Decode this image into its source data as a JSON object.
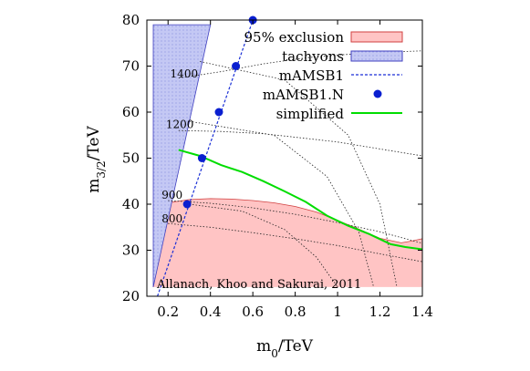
{
  "chart_data": {
    "type": "line",
    "title": "",
    "xlabel": "m0/TeV",
    "ylabel": "m3/2/TeV",
    "xlim": [
      0.1,
      1.4
    ],
    "ylim": [
      20,
      80
    ],
    "xticks": [
      0.2,
      0.4,
      0.6,
      0.8,
      1.0,
      1.2,
      1.4
    ],
    "xtick_labels": [
      "0.2",
      "0.4",
      "0.6",
      "0.8",
      "1",
      "1.2",
      "1.4"
    ],
    "yticks": [
      20,
      30,
      40,
      50,
      60,
      70,
      80
    ],
    "ytick_labels": [
      "20",
      "30",
      "40",
      "50",
      "60",
      "70",
      "80"
    ],
    "grid": false,
    "legend_position": "top-right",
    "annotation": "Allanach, Khoo and Sakurai, 2011",
    "colors": {
      "exclusion_fill": "#ffc4c4",
      "exclusion_edge": "#d04040",
      "tachyon_fill": "#c4c8f4",
      "tachyon_edge": "#4040c0",
      "mamsb1_line": "#1a2fd6",
      "mamsb1n_point": "#0a1fd0",
      "simplified_line": "#00dd00",
      "contour": "#222222"
    },
    "series": [
      {
        "name": "95% exclusion",
        "kind": "filled-region",
        "x": [
          0.13,
          0.2,
          0.3,
          0.4,
          0.5,
          0.6,
          0.7,
          0.8,
          0.9,
          1.0,
          1.1,
          1.2,
          1.3,
          1.35,
          1.4,
          1.4,
          0.13
        ],
        "y": [
          22,
          40.3,
          41,
          41.2,
          41.1,
          40.8,
          40.3,
          39.5,
          38.3,
          36.5,
          34.6,
          32.6,
          31.6,
          32,
          32.5,
          22,
          22
        ]
      },
      {
        "name": "tachyons",
        "kind": "filled-region",
        "x": [
          0.13,
          0.13,
          0.4,
          0.13
        ],
        "y": [
          22,
          79,
          79,
          22
        ]
      },
      {
        "name": "mAMSB1",
        "kind": "dashed-line",
        "x": [
          0.15,
          0.6
        ],
        "y": [
          20,
          80
        ]
      },
      {
        "name": "mAMSB1.N",
        "kind": "points",
        "x": [
          0.29,
          0.36,
          0.44,
          0.52,
          0.6
        ],
        "y": [
          40,
          50,
          60,
          70,
          80
        ]
      },
      {
        "name": "simplified",
        "kind": "line",
        "x": [
          0.25,
          0.35,
          0.45,
          0.55,
          0.65,
          0.75,
          0.85,
          0.95,
          1.05,
          1.15,
          1.25,
          1.32,
          1.4
        ],
        "y": [
          51.8,
          50.5,
          48.5,
          47,
          45,
          42.8,
          40.5,
          37.5,
          35.3,
          33.5,
          31.3,
          30.7,
          30.2
        ]
      }
    ],
    "contours": [
      {
        "label": "1400",
        "label_at": [
          0.21,
          67.5
        ],
        "x": [
          0.25,
          0.45,
          0.65,
          0.85,
          1.0,
          1.2,
          1.4
        ],
        "y": [
          67.4,
          68.8,
          70.5,
          71.8,
          72.4,
          73,
          73.3
        ]
      },
      {
        "label": "1200",
        "label_at": [
          0.19,
          56.5
        ],
        "x": [
          0.25,
          0.45,
          0.65,
          0.85,
          1.0,
          1.2,
          1.4
        ],
        "y": [
          56,
          55.8,
          55.3,
          54.3,
          53.5,
          52,
          50.5
        ]
      },
      {
        "label": "900",
        "label_at": [
          0.17,
          41.2
        ],
        "x": [
          0.2,
          0.4,
          0.6,
          0.8,
          1.0,
          1.2,
          1.4
        ],
        "y": [
          40.8,
          40.2,
          39.2,
          37.8,
          36,
          34,
          31.5
        ]
      },
      {
        "label": "800",
        "label_at": [
          0.17,
          36
        ],
        "x": [
          0.2,
          0.4,
          0.6,
          0.8,
          1.0,
          1.2,
          1.4
        ],
        "y": [
          35.8,
          35,
          33.8,
          32.5,
          31,
          29.2,
          27.5
        ]
      }
    ],
    "mass_contours": [
      {
        "x": [
          0.3,
          0.55,
          0.75,
          0.9,
          1.0
        ],
        "y": [
          40,
          38.5,
          34.5,
          28.5,
          22
        ]
      },
      {
        "x": [
          0.3,
          0.7,
          0.95,
          1.1,
          1.17
        ],
        "y": [
          58,
          55,
          46,
          34,
          22
        ]
      },
      {
        "x": [
          0.35,
          0.75,
          1.05,
          1.2,
          1.28
        ],
        "y": [
          71,
          67,
          55,
          40,
          22
        ]
      }
    ]
  }
}
